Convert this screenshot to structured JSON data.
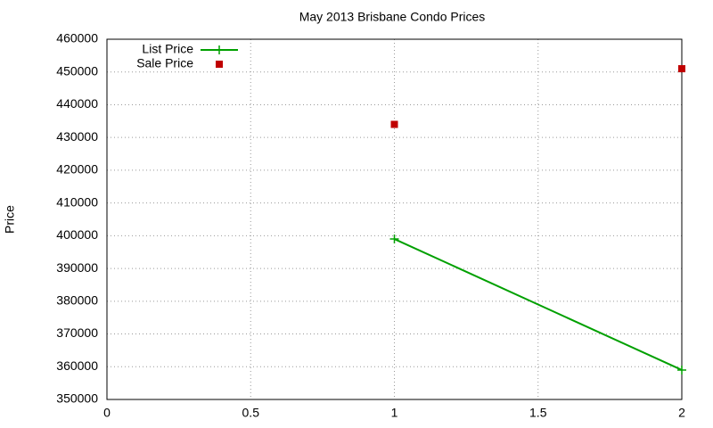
{
  "chart_data": {
    "type": "line",
    "title": "May 2013 Brisbane Condo Prices",
    "y_label": "Price",
    "x": [
      1,
      2
    ],
    "series": [
      {
        "name": "List Price",
        "color": "#00a000",
        "style": "linespoints",
        "values": [
          399000,
          359000
        ]
      },
      {
        "name": "Sale Price",
        "color": "#c00000",
        "style": "points",
        "values": [
          434000,
          451000
        ]
      }
    ],
    "xlim": [
      0,
      2
    ],
    "xticks": [
      0,
      0.5,
      1,
      1.5,
      2
    ],
    "ylim": [
      350000,
      460000
    ],
    "yticks": [
      350000,
      360000,
      370000,
      380000,
      390000,
      400000,
      410000,
      420000,
      430000,
      440000,
      450000,
      460000
    ],
    "grid": true,
    "legend": "top-left"
  }
}
